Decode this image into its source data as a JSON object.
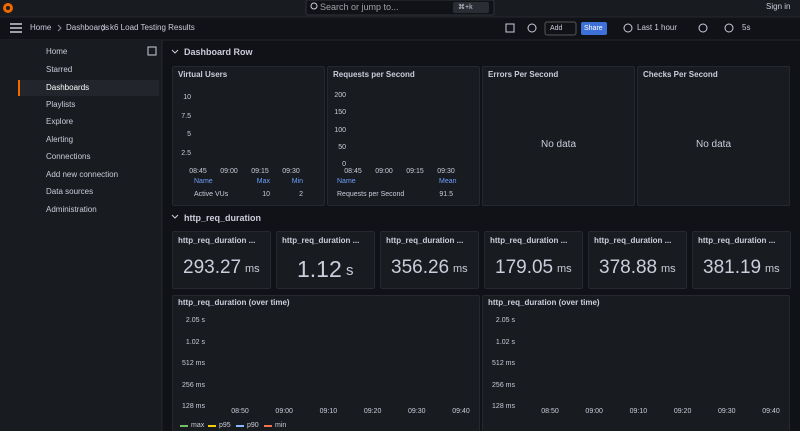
{
  "topbar": {
    "breadcrumb": [
      "Home",
      "Dashboards",
      "k6 Load Testing Results"
    ],
    "search": "Search or jump to...",
    "shortcut": "⌘+k",
    "sign_in": "Sign in"
  },
  "toolbar": {
    "add": "Add",
    "share": "Share",
    "time_range": "Last 1 hour",
    "refresh": "5s"
  },
  "sidebar": [
    "Home",
    "Starred",
    "Dashboards",
    "Playlists",
    "Explore",
    "Alerting",
    "Connections",
    "Add new connection",
    "Data sources",
    "Administration"
  ],
  "rows": [
    "Dashboard Row",
    "http_req_duration"
  ],
  "panels": [
    {
      "title": "Virtual Users",
      "yticks": [
        "10",
        "7.5",
        "5",
        "2.5"
      ],
      "xticks": [
        "08:45",
        "09:00",
        "09:15",
        "09:30"
      ],
      "legend": {
        "headers": [
          "Name",
          "Max",
          "Min"
        ],
        "rows": [
          [
            "Active VUs",
            "10",
            "2"
          ]
        ]
      }
    },
    {
      "title": "Requests per Second",
      "yticks": [
        "200",
        "150",
        "100",
        "50",
        "0"
      ],
      "xticks": [
        "08:45",
        "09:00",
        "09:15",
        "09:30"
      ],
      "legend": {
        "headers": [
          "Name",
          "Mean"
        ],
        "rows": [
          [
            "Requests per Second",
            "91.5"
          ]
        ]
      }
    },
    {
      "title": "Errors Per Second",
      "message": "No data"
    },
    {
      "title": "Checks Per Second",
      "message": "No data"
    }
  ],
  "stats": [
    {
      "title": "http_req_duration ...",
      "value": "293.27",
      "unit": "ms"
    },
    {
      "title": "http_req_duration ...",
      "value": "1.12",
      "unit": "s"
    },
    {
      "title": "http_req_duration ...",
      "value": "356.26",
      "unit": "ms"
    },
    {
      "title": "http_req_duration ...",
      "value": "179.05",
      "unit": "ms"
    },
    {
      "title": "http_req_duration ...",
      "value": "378.88",
      "unit": "ms"
    },
    {
      "title": "http_req_duration ...",
      "value": "381.19",
      "unit": "ms"
    }
  ],
  "timeseries": [
    {
      "title": "http_req_duration (over time)",
      "yticks": [
        "2.05 s",
        "1.02 s",
        "512 ms",
        "256 ms",
        "128 ms"
      ],
      "xticks": [
        "08:50",
        "09:00",
        "09:10",
        "09:20",
        "09:30",
        "09:40"
      ],
      "legend": [
        "max",
        "p95",
        "p90",
        "min"
      ]
    },
    {
      "title": "http_req_duration (over time)",
      "yticks": [
        "2.05 s",
        "1.02 s",
        "512 ms",
        "256 ms",
        "128 ms"
      ],
      "xticks": [
        "08:50",
        "09:00",
        "09:10",
        "09:20",
        "09:30",
        "09:40"
      ]
    }
  ]
}
